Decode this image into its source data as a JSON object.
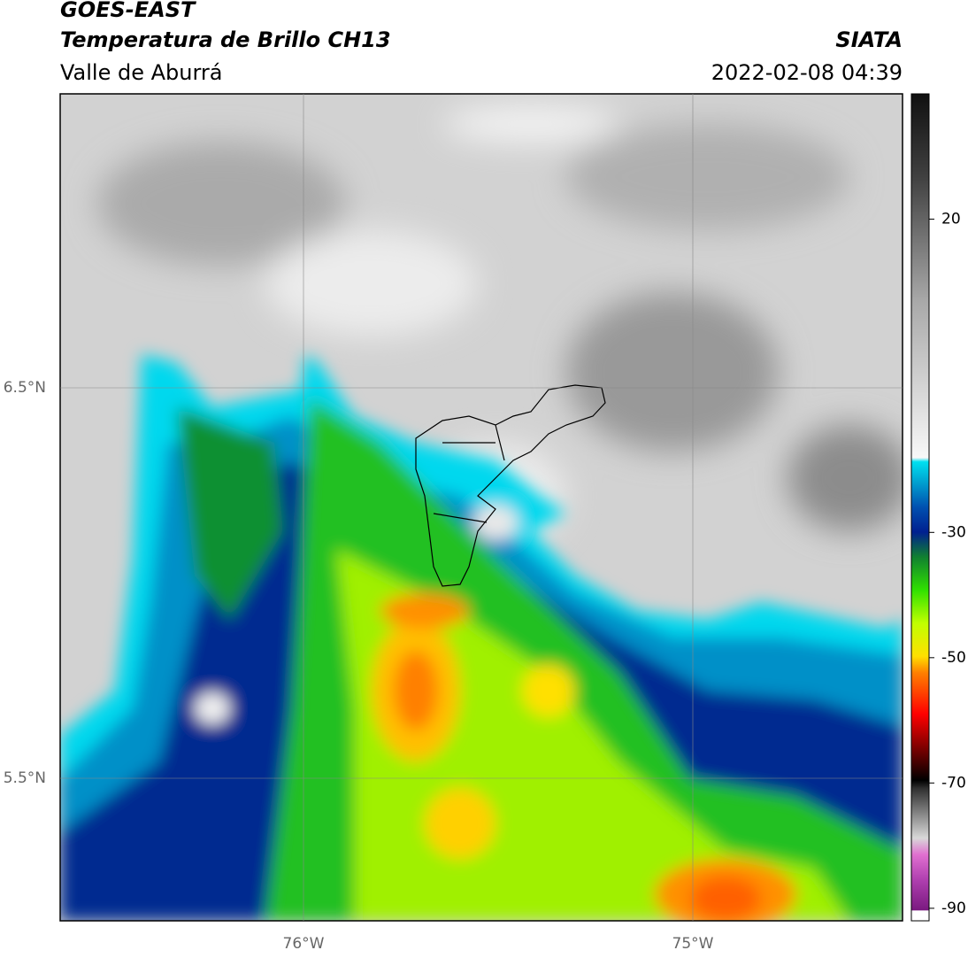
{
  "header": {
    "title": "GOES-EAST",
    "subtitle": "Temperatura de Brillo CH13",
    "region": "Valle de Aburrá",
    "source": "SIATA",
    "datetime": "2022-02-08 04:39"
  },
  "map": {
    "lat_labels": [
      "6.5°N",
      "5.5°N"
    ],
    "lon_labels": [
      "76°W",
      "75°W"
    ]
  },
  "colorbar": {
    "lim": [
      -92,
      40
    ],
    "ticks": [
      20,
      -30,
      -50,
      -70,
      -90
    ]
  }
}
